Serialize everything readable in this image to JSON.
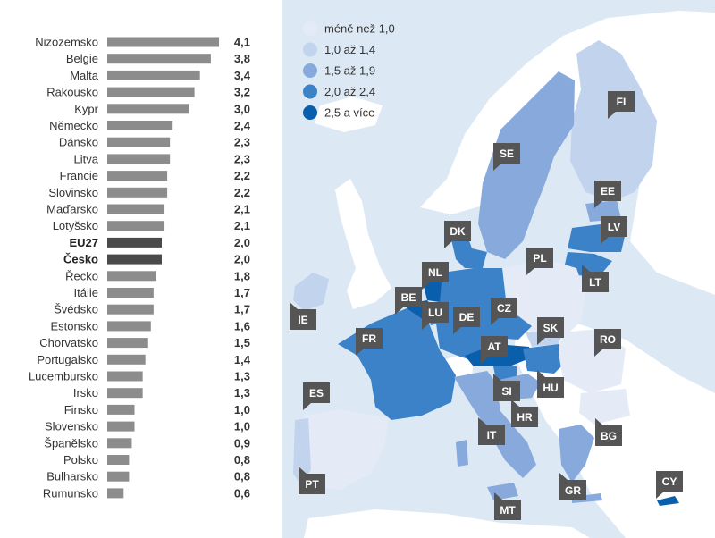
{
  "chart_data": [
    {
      "type": "bar",
      "orientation": "horizontal",
      "categories": [
        "Nizozemsko",
        "Belgie",
        "Malta",
        "Rakousko",
        "Kypr",
        "Německo",
        "Dánsko",
        "Litva",
        "Francie",
        "Slovinsko",
        "Maďarsko",
        "Lotyšsko",
        "EU27",
        "Česko",
        "Řecko",
        "Itálie",
        "Švédsko",
        "Estonsko",
        "Chorvatsko",
        "Portugalsko",
        "Lucembursko",
        "Irsko",
        "Finsko",
        "Slovensko",
        "Španělsko",
        "Polsko",
        "Bulharsko",
        "Rumunsko"
      ],
      "values": [
        4.1,
        3.8,
        3.4,
        3.2,
        3.0,
        2.4,
        2.3,
        2.3,
        2.2,
        2.2,
        2.1,
        2.1,
        2.0,
        2.0,
        1.8,
        1.7,
        1.7,
        1.6,
        1.5,
        1.4,
        1.3,
        1.3,
        1.0,
        1.0,
        0.9,
        0.8,
        0.8,
        0.6
      ],
      "value_labels": [
        "4,1",
        "3,8",
        "3,4",
        "3,2",
        "3,0",
        "2,4",
        "2,3",
        "2,3",
        "2,2",
        "2,2",
        "2,1",
        "2,1",
        "2,0",
        "2,0",
        "1,8",
        "1,7",
        "1,7",
        "1,6",
        "1,5",
        "1,4",
        "1,3",
        "1,3",
        "1,0",
        "1,0",
        "0,9",
        "0,8",
        "0,8",
        "0,6"
      ],
      "highlighted": [
        "EU27",
        "Česko"
      ],
      "colors": {
        "bar": "#8c8c8c",
        "highlight": "#4a4a4a"
      }
    },
    {
      "type": "choropleth",
      "legend": [
        {
          "label": "méně než 1,0",
          "color": "#e4eaf6"
        },
        {
          "label": "1,0  až 1,4",
          "color": "#c2d3ee"
        },
        {
          "label": "1,5 až 1,9",
          "color": "#87a9dc"
        },
        {
          "label": "2,0 až 2,4",
          "color": "#3b82c8"
        },
        {
          "label": "2,5 a více",
          "color": "#0a5fad"
        }
      ],
      "codes": [
        "FI",
        "SE",
        "EE",
        "LV",
        "LT",
        "DK",
        "PL",
        "NL",
        "BE",
        "LU",
        "DE",
        "CZ",
        "SK",
        "AT",
        "RO",
        "FR",
        "IE",
        "SI",
        "HU",
        "HR",
        "ES",
        "IT",
        "BG",
        "PT",
        "GR",
        "CY",
        "MT"
      ]
    }
  ]
}
